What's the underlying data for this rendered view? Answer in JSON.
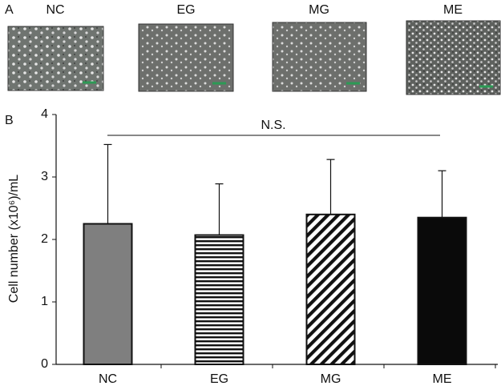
{
  "panel_a": {
    "label": "A",
    "images": [
      {
        "label": "NC"
      },
      {
        "label": "EG"
      },
      {
        "label": "MG"
      },
      {
        "label": "ME"
      }
    ]
  },
  "chart_data": {
    "type": "bar",
    "panel_label": "B",
    "y_label": "Cell number (x10⁶)/mL",
    "annotation": "N.S.",
    "categories": [
      "NC",
      "EG",
      "MG",
      "ME"
    ],
    "values": [
      2.25,
      2.07,
      2.4,
      2.35
    ],
    "errors": [
      1.27,
      0.82,
      0.88,
      0.75
    ],
    "colors": [
      "#7f7f7f",
      "#111111",
      "#111111",
      "#0a0a0a"
    ],
    "patterns": [
      "solid",
      "horizontal",
      "diagonal",
      "solid"
    ],
    "ylim": [
      0,
      4
    ],
    "yticks": [
      0,
      1,
      2,
      3,
      4
    ]
  }
}
